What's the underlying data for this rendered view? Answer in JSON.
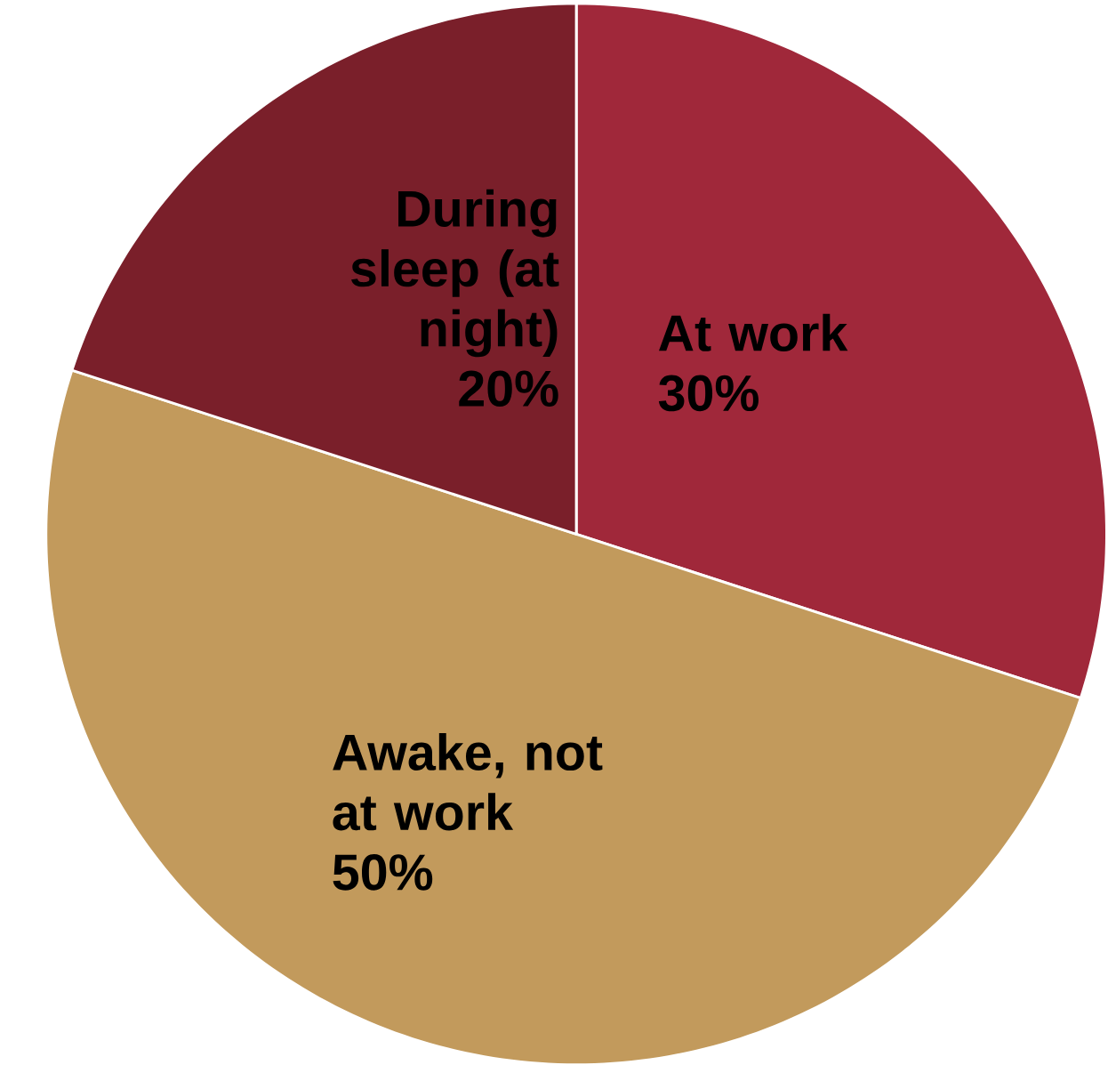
{
  "chart_data": {
    "type": "pie",
    "categories": [
      "At work",
      "Awake, not at work",
      "During sleep (at night)"
    ],
    "values": [
      30,
      50,
      20
    ],
    "colors": [
      "#a0283a",
      "#c29a5c",
      "#7a1f2a"
    ],
    "value_labels": [
      "30%",
      "50%",
      "20%"
    ]
  }
}
